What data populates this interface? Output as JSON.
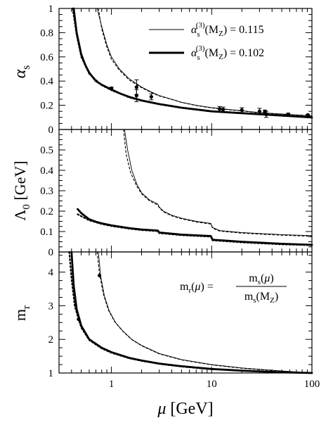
{
  "chart_data": [
    {
      "type": "line",
      "panel": "top",
      "ylabel": "αs",
      "xscale": "log",
      "xlim": [
        0.3,
        100
      ],
      "ylim": [
        0,
        1
      ],
      "yticks": [
        "0",
        "0.2",
        "0.4",
        "0.6",
        "0.8",
        "1"
      ],
      "legend": {
        "placement": "top-right",
        "entries": [
          {
            "style": "thin",
            "prefix": "α",
            "sub": "s",
            "sup": "(3)",
            "arg": "(M",
            "argsub": "Z",
            "close": ")",
            "eq": "=",
            "value": "0.115"
          },
          {
            "style": "thick",
            "prefix": "α",
            "sub": "s",
            "sup": "(3)",
            "arg": "(M",
            "argsub": "Z",
            "close": ")",
            "eq": "=",
            "value": "0.102"
          }
        ]
      },
      "series": [
        {
          "style": "thin",
          "x": [
            0.72,
            0.8,
            0.9,
            1.0,
            1.2,
            1.5,
            2.0,
            2.5,
            3.0,
            4.0,
            5.0,
            7.0,
            10.0,
            15.0,
            20.0,
            30.0,
            50.0,
            100.0
          ],
          "y": [
            1.0,
            0.85,
            0.7,
            0.6,
            0.5,
            0.42,
            0.35,
            0.31,
            0.28,
            0.25,
            0.225,
            0.2,
            0.18,
            0.165,
            0.155,
            0.14,
            0.128,
            0.113
          ]
        },
        {
          "style": "thin-dotted",
          "x": [
            0.74,
            0.8,
            0.9,
            1.0,
            1.2,
            1.5,
            2.0,
            2.5,
            3.0,
            4.0,
            5.0,
            7.0,
            10.0,
            15.0,
            20.0,
            30.0,
            50.0,
            100.0
          ],
          "y": [
            1.0,
            0.83,
            0.68,
            0.58,
            0.49,
            0.41,
            0.345,
            0.305,
            0.277,
            0.248,
            0.223,
            0.198,
            0.178,
            0.163,
            0.153,
            0.138,
            0.126,
            0.112
          ]
        },
        {
          "style": "thick",
          "x": [
            0.42,
            0.45,
            0.5,
            0.55,
            0.6,
            0.7,
            0.8,
            1.0,
            1.2,
            1.5,
            2.0,
            3.0,
            5.0,
            10.0,
            20.0,
            50.0,
            100.0
          ],
          "y": [
            1.0,
            0.8,
            0.62,
            0.53,
            0.47,
            0.4,
            0.37,
            0.33,
            0.3,
            0.27,
            0.24,
            0.21,
            0.18,
            0.15,
            0.135,
            0.115,
            0.1
          ]
        },
        {
          "style": "thick-dotted",
          "x": [
            0.41,
            0.45,
            0.5,
            0.6,
            0.8,
            1.0,
            1.5,
            2.0,
            3.0,
            5.0,
            10.0
          ],
          "y": [
            1.0,
            0.78,
            0.6,
            0.46,
            0.365,
            0.325,
            0.265,
            0.237,
            0.208,
            0.178,
            0.149
          ]
        }
      ],
      "points": [
        {
          "x": 1.0,
          "y": 0.34,
          "err": 0.01
        },
        {
          "x": 1.78,
          "y": 0.35,
          "err": 0.06
        },
        {
          "x": 1.78,
          "y": 0.28,
          "err": 0.05
        },
        {
          "x": 2.5,
          "y": 0.27,
          "err": 0.025
        },
        {
          "x": 12,
          "y": 0.17,
          "err": 0.02
        },
        {
          "x": 13,
          "y": 0.165,
          "err": 0.02
        },
        {
          "x": 20,
          "y": 0.16,
          "err": 0.02
        },
        {
          "x": 30,
          "y": 0.15,
          "err": 0.025
        },
        {
          "x": 34,
          "y": 0.15,
          "err": 0.01
        },
        {
          "x": 35,
          "y": 0.125,
          "err": 0.025
        },
        {
          "x": 58,
          "y": 0.125,
          "err": 0.01
        },
        {
          "x": 91,
          "y": 0.12,
          "err": 0.005
        }
      ]
    },
    {
      "type": "line",
      "panel": "middle",
      "ylabel": "Λ0 [GeV]",
      "xscale": "log",
      "xlim": [
        0.3,
        100
      ],
      "ylim": [
        0,
        0.6
      ],
      "yticks": [
        "0",
        "0.1",
        "0.2",
        "0.3",
        "0.4",
        "0.5"
      ],
      "series": [
        {
          "style": "thin",
          "x": [
            1.35,
            1.45,
            1.6,
            1.8,
            2.0,
            2.4,
            2.9,
            3.0,
            3.3,
            4.0,
            5.0,
            7.0,
            9.8,
            10.2,
            12.0,
            20.0,
            50.0,
            100.0
          ],
          "y": [
            0.6,
            0.5,
            0.4,
            0.33,
            0.29,
            0.255,
            0.235,
            0.22,
            0.2,
            0.18,
            0.165,
            0.15,
            0.14,
            0.12,
            0.105,
            0.095,
            0.085,
            0.08
          ]
        },
        {
          "style": "thin-dotted",
          "x": [
            1.32,
            1.4,
            1.55,
            1.8,
            2.0,
            2.4,
            2.9,
            3.0,
            3.3,
            4.0,
            5.0,
            7.0,
            9.8,
            10.2,
            12.0,
            20.0,
            50.0,
            100.0
          ],
          "y": [
            0.6,
            0.48,
            0.39,
            0.32,
            0.285,
            0.25,
            0.23,
            0.217,
            0.197,
            0.177,
            0.162,
            0.147,
            0.137,
            0.117,
            0.102,
            0.092,
            0.082,
            0.077
          ]
        },
        {
          "style": "thick",
          "x": [
            0.46,
            0.5,
            0.6,
            0.7,
            0.8,
            1.0,
            1.5,
            2.0,
            2.9,
            3.0,
            5.0,
            9.8,
            10.2,
            20.0,
            50.0,
            100.0
          ],
          "y": [
            0.21,
            0.19,
            0.16,
            0.148,
            0.14,
            0.13,
            0.117,
            0.11,
            0.105,
            0.095,
            0.085,
            0.078,
            0.06,
            0.05,
            0.04,
            0.035
          ]
        },
        {
          "style": "thick-dotted",
          "x": [
            0.46,
            0.5,
            0.6,
            0.8,
            1.0,
            1.5,
            2.0,
            2.9,
            3.0,
            5.0,
            9.8,
            10.2,
            20.0,
            50.0,
            100.0
          ],
          "y": [
            0.185,
            0.175,
            0.155,
            0.137,
            0.127,
            0.114,
            0.107,
            0.102,
            0.092,
            0.082,
            0.075,
            0.057,
            0.047,
            0.037,
            0.033
          ]
        }
      ]
    },
    {
      "type": "line",
      "panel": "bottom",
      "ylabel": "mr",
      "xlabel": "μ [GeV]",
      "xscale": "log",
      "xlim": [
        0.3,
        100
      ],
      "ylim": [
        1,
        4.6
      ],
      "yticks": [
        "1",
        "2",
        "3",
        "4"
      ],
      "xticks": [
        "1",
        "10",
        "100"
      ],
      "formula": {
        "lhs": "m",
        "lhs_sub": "r",
        "lhs_arg": "(μ)",
        "eq": "=",
        "num": "m",
        "num_sub": "s",
        "num_arg": "(μ)",
        "den": "m",
        "den_sub": "s",
        "den_arg": "(M",
        "den_argsub": "Z",
        "den_close": ")"
      },
      "series": [
        {
          "style": "thin",
          "x": [
            0.74,
            0.78,
            0.85,
            0.95,
            1.1,
            1.3,
            1.6,
            2.0,
            3.0,
            5.0,
            10.0,
            20.0,
            50.0,
            100.0
          ],
          "y": [
            4.6,
            3.9,
            3.3,
            2.85,
            2.5,
            2.25,
            2.0,
            1.82,
            1.58,
            1.4,
            1.25,
            1.15,
            1.06,
            1.0
          ]
        },
        {
          "style": "thin-dotted",
          "x": [
            0.72,
            0.76,
            0.83,
            0.93,
            1.08,
            1.3,
            1.6,
            2.0,
            3.0,
            5.0,
            10.0,
            20.0,
            50.0,
            100.0
          ],
          "y": [
            4.6,
            3.95,
            3.35,
            2.88,
            2.52,
            2.24,
            1.99,
            1.81,
            1.57,
            1.39,
            1.24,
            1.14,
            1.05,
            0.99
          ]
        },
        {
          "style": "thick",
          "x": [
            0.4,
            0.42,
            0.45,
            0.5,
            0.6,
            0.8,
            1.0,
            1.5,
            2.0,
            3.0,
            5.0,
            10.0,
            20.0,
            50.0,
            100.0
          ],
          "y": [
            4.6,
            3.6,
            2.9,
            2.4,
            2.0,
            1.75,
            1.62,
            1.45,
            1.37,
            1.28,
            1.2,
            1.12,
            1.07,
            1.02,
            1.0
          ]
        },
        {
          "style": "thick-dotted",
          "x": [
            0.38,
            0.4,
            0.43,
            0.47,
            0.5,
            0.6,
            0.8,
            1.0,
            1.5,
            2.0,
            3.0,
            5.0,
            10.0
          ],
          "y": [
            4.6,
            3.8,
            3.0,
            2.6,
            2.35,
            1.98,
            1.73,
            1.6,
            1.44,
            1.36,
            1.27,
            1.19,
            1.11
          ]
        }
      ],
      "points": [
        {
          "x": 0.47,
          "y": 2.6
        },
        {
          "x": 0.76,
          "y": 3.9
        }
      ]
    }
  ]
}
